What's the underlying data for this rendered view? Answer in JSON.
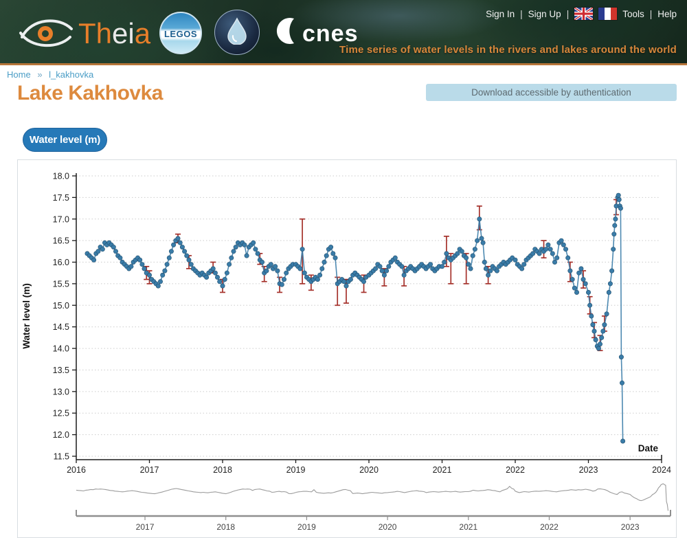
{
  "header": {
    "brand": {
      "theia_part1": "Th",
      "theia_part2": "ei",
      "theia_part3": "a",
      "legos_label": "LEGOS",
      "cnes_label": "cnes"
    },
    "nav": {
      "sign_in": "Sign In",
      "sign_up": "Sign Up",
      "tools": "Tools",
      "help": "Help"
    },
    "tagline": "Time series of water levels in the rivers and lakes around the world"
  },
  "breadcrumb": {
    "home": "Home",
    "separator": "»",
    "current": "l_kakhovka"
  },
  "page": {
    "title": "Lake Kakhovka",
    "download_notice": "Download accessible by authentication",
    "series_button": "Water level (m)"
  },
  "colors": {
    "accent_orange": "#dd8a3e",
    "link_teal": "#4a9dc6",
    "button_blue": "#2679b8",
    "banner_blue": "#badbe9",
    "header_border": "#b8763a"
  },
  "chart_data": {
    "type": "scatter",
    "title": "",
    "xlabel": "Date",
    "ylabel": "Water level (m)",
    "xlim": [
      2016,
      2024
    ],
    "ylim": [
      11.5,
      18.0
    ],
    "grid": "horizontal-dotted",
    "xticks": [
      2016,
      2017,
      2018,
      2019,
      2020,
      2021,
      2022,
      2023,
      2024
    ],
    "yticks": [
      11.5,
      12.0,
      12.5,
      13.0,
      13.5,
      14.0,
      14.5,
      15.0,
      15.5,
      16.0,
      16.5,
      17.0,
      17.5,
      18.0
    ],
    "point_color": "#3a7ca8",
    "point_edge_color": "#23506f",
    "line_color": "#3a7ca8",
    "errorbar_color": "#a5312b",
    "points": [
      [
        2016.15,
        16.2
      ],
      [
        2016.18,
        16.15
      ],
      [
        2016.21,
        16.1
      ],
      [
        2016.24,
        16.05
      ],
      [
        2016.27,
        16.2
      ],
      [
        2016.3,
        16.25
      ],
      [
        2016.33,
        16.35
      ],
      [
        2016.36,
        16.3
      ],
      [
        2016.39,
        16.45
      ],
      [
        2016.42,
        16.4
      ],
      [
        2016.45,
        16.45
      ],
      [
        2016.48,
        16.4
      ],
      [
        2016.51,
        16.35
      ],
      [
        2016.54,
        16.25
      ],
      [
        2016.57,
        16.15
      ],
      [
        2016.6,
        16.1
      ],
      [
        2016.63,
        16.0
      ],
      [
        2016.66,
        15.95
      ],
      [
        2016.69,
        15.9
      ],
      [
        2016.72,
        15.85
      ],
      [
        2016.75,
        15.9
      ],
      [
        2016.78,
        16.0
      ],
      [
        2016.81,
        16.05
      ],
      [
        2016.84,
        16.1
      ],
      [
        2016.87,
        16.05
      ],
      [
        2016.9,
        15.95
      ],
      [
        2016.93,
        15.85
      ],
      [
        2016.96,
        15.75
      ],
      [
        2017.0,
        15.7
      ],
      [
        2017.03,
        15.6
      ],
      [
        2017.06,
        15.55
      ],
      [
        2017.09,
        15.5
      ],
      [
        2017.12,
        15.45
      ],
      [
        2017.15,
        15.55
      ],
      [
        2017.18,
        15.7
      ],
      [
        2017.21,
        15.8
      ],
      [
        2017.24,
        15.95
      ],
      [
        2017.27,
        16.1
      ],
      [
        2017.3,
        16.25
      ],
      [
        2017.33,
        16.4
      ],
      [
        2017.36,
        16.5
      ],
      [
        2017.39,
        16.55
      ],
      [
        2017.42,
        16.45
      ],
      [
        2017.45,
        16.35
      ],
      [
        2017.48,
        16.25
      ],
      [
        2017.51,
        16.15
      ],
      [
        2017.54,
        16.05
      ],
      [
        2017.57,
        15.95
      ],
      [
        2017.6,
        15.85
      ],
      [
        2017.63,
        15.8
      ],
      [
        2017.66,
        15.75
      ],
      [
        2017.69,
        15.7
      ],
      [
        2017.72,
        15.75
      ],
      [
        2017.75,
        15.7
      ],
      [
        2017.78,
        15.65
      ],
      [
        2017.81,
        15.75
      ],
      [
        2017.84,
        15.8
      ],
      [
        2017.87,
        15.85
      ],
      [
        2017.9,
        15.75
      ],
      [
        2017.93,
        15.65
      ],
      [
        2017.96,
        15.55
      ],
      [
        2018.0,
        15.45
      ],
      [
        2018.03,
        15.6
      ],
      [
        2018.06,
        15.75
      ],
      [
        2018.09,
        15.95
      ],
      [
        2018.12,
        16.1
      ],
      [
        2018.15,
        16.25
      ],
      [
        2018.18,
        16.35
      ],
      [
        2018.21,
        16.45
      ],
      [
        2018.24,
        16.4
      ],
      [
        2018.27,
        16.45
      ],
      [
        2018.3,
        16.4
      ],
      [
        2018.33,
        16.15
      ],
      [
        2018.36,
        16.35
      ],
      [
        2018.39,
        16.4
      ],
      [
        2018.42,
        16.45
      ],
      [
        2018.45,
        16.3
      ],
      [
        2018.48,
        16.2
      ],
      [
        2018.51,
        16.05
      ],
      [
        2018.54,
        16.0
      ],
      [
        2018.57,
        15.75
      ],
      [
        2018.6,
        15.8
      ],
      [
        2018.63,
        15.9
      ],
      [
        2018.66,
        15.95
      ],
      [
        2018.69,
        15.85
      ],
      [
        2018.72,
        15.9
      ],
      [
        2018.75,
        15.8
      ],
      [
        2018.78,
        15.5
      ],
      [
        2018.81,
        15.48
      ],
      [
        2018.84,
        15.6
      ],
      [
        2018.87,
        15.75
      ],
      [
        2018.9,
        15.85
      ],
      [
        2018.93,
        15.9
      ],
      [
        2018.96,
        15.95
      ],
      [
        2019.0,
        15.95
      ],
      [
        2019.03,
        15.9
      ],
      [
        2019.06,
        15.85
      ],
      [
        2019.09,
        16.3
      ],
      [
        2019.12,
        15.75
      ],
      [
        2019.15,
        15.65
      ],
      [
        2019.18,
        15.6
      ],
      [
        2019.21,
        15.55
      ],
      [
        2019.24,
        15.6
      ],
      [
        2019.27,
        15.65
      ],
      [
        2019.3,
        15.6
      ],
      [
        2019.33,
        15.7
      ],
      [
        2019.36,
        15.85
      ],
      [
        2019.39,
        16.0
      ],
      [
        2019.42,
        16.15
      ],
      [
        2019.45,
        16.3
      ],
      [
        2019.48,
        16.35
      ],
      [
        2019.51,
        16.2
      ],
      [
        2019.54,
        16.1
      ],
      [
        2019.57,
        15.5
      ],
      [
        2019.6,
        15.55
      ],
      [
        2019.63,
        15.6
      ],
      [
        2019.66,
        15.55
      ],
      [
        2019.69,
        15.45
      ],
      [
        2019.72,
        15.55
      ],
      [
        2019.75,
        15.6
      ],
      [
        2019.78,
        15.7
      ],
      [
        2019.81,
        15.75
      ],
      [
        2019.84,
        15.7
      ],
      [
        2019.87,
        15.65
      ],
      [
        2019.9,
        15.6
      ],
      [
        2019.93,
        15.55
      ],
      [
        2019.96,
        15.65
      ],
      [
        2020.0,
        15.7
      ],
      [
        2020.03,
        15.75
      ],
      [
        2020.06,
        15.8
      ],
      [
        2020.09,
        15.85
      ],
      [
        2020.12,
        15.95
      ],
      [
        2020.15,
        15.9
      ],
      [
        2020.18,
        15.8
      ],
      [
        2020.21,
        15.7
      ],
      [
        2020.24,
        15.8
      ],
      [
        2020.27,
        15.9
      ],
      [
        2020.3,
        16.0
      ],
      [
        2020.33,
        16.05
      ],
      [
        2020.36,
        16.1
      ],
      [
        2020.39,
        16.0
      ],
      [
        2020.42,
        15.95
      ],
      [
        2020.45,
        15.9
      ],
      [
        2020.48,
        15.7
      ],
      [
        2020.51,
        15.8
      ],
      [
        2020.54,
        15.85
      ],
      [
        2020.57,
        15.9
      ],
      [
        2020.6,
        15.85
      ],
      [
        2020.63,
        15.8
      ],
      [
        2020.66,
        15.85
      ],
      [
        2020.69,
        15.9
      ],
      [
        2020.72,
        15.95
      ],
      [
        2020.75,
        15.9
      ],
      [
        2020.78,
        15.85
      ],
      [
        2020.81,
        15.9
      ],
      [
        2020.84,
        15.95
      ],
      [
        2020.87,
        15.85
      ],
      [
        2020.9,
        15.8
      ],
      [
        2020.93,
        15.85
      ],
      [
        2020.96,
        15.9
      ],
      [
        2021.0,
        15.9
      ],
      [
        2021.03,
        16.0
      ],
      [
        2021.06,
        16.2
      ],
      [
        2021.09,
        16.1
      ],
      [
        2021.12,
        16.05
      ],
      [
        2021.15,
        16.1
      ],
      [
        2021.18,
        16.15
      ],
      [
        2021.21,
        16.2
      ],
      [
        2021.24,
        16.3
      ],
      [
        2021.27,
        16.25
      ],
      [
        2021.3,
        16.15
      ],
      [
        2021.33,
        16.1
      ],
      [
        2021.36,
        15.95
      ],
      [
        2021.39,
        15.85
      ],
      [
        2021.42,
        16.15
      ],
      [
        2021.45,
        16.3
      ],
      [
        2021.48,
        16.5
      ],
      [
        2021.51,
        17.0
      ],
      [
        2021.54,
        16.55
      ],
      [
        2021.56,
        16.45
      ],
      [
        2021.58,
        16.0
      ],
      [
        2021.6,
        15.85
      ],
      [
        2021.63,
        15.7
      ],
      [
        2021.66,
        15.8
      ],
      [
        2021.69,
        15.9
      ],
      [
        2021.72,
        15.85
      ],
      [
        2021.75,
        15.8
      ],
      [
        2021.78,
        15.9
      ],
      [
        2021.81,
        15.95
      ],
      [
        2021.84,
        16.0
      ],
      [
        2021.87,
        15.95
      ],
      [
        2021.9,
        16.0
      ],
      [
        2021.93,
        16.05
      ],
      [
        2021.96,
        16.1
      ],
      [
        2022.0,
        16.05
      ],
      [
        2022.03,
        15.95
      ],
      [
        2022.06,
        15.9
      ],
      [
        2022.09,
        15.85
      ],
      [
        2022.12,
        15.95
      ],
      [
        2022.15,
        16.05
      ],
      [
        2022.18,
        16.1
      ],
      [
        2022.21,
        16.15
      ],
      [
        2022.24,
        16.2
      ],
      [
        2022.27,
        16.3
      ],
      [
        2022.3,
        16.25
      ],
      [
        2022.33,
        16.2
      ],
      [
        2022.36,
        16.3
      ],
      [
        2022.39,
        16.25
      ],
      [
        2022.42,
        16.3
      ],
      [
        2022.45,
        16.4
      ],
      [
        2022.48,
        16.3
      ],
      [
        2022.51,
        16.2
      ],
      [
        2022.54,
        16.0
      ],
      [
        2022.57,
        16.1
      ],
      [
        2022.6,
        16.45
      ],
      [
        2022.63,
        16.5
      ],
      [
        2022.66,
        16.4
      ],
      [
        2022.69,
        16.3
      ],
      [
        2022.72,
        16.1
      ],
      [
        2022.75,
        15.8
      ],
      [
        2022.78,
        15.6
      ],
      [
        2022.81,
        15.4
      ],
      [
        2022.84,
        15.3
      ],
      [
        2022.87,
        15.75
      ],
      [
        2022.9,
        15.85
      ],
      [
        2022.93,
        15.6
      ],
      [
        2022.96,
        15.5
      ],
      [
        2023.0,
        15.3
      ],
      [
        2023.02,
        15.0
      ],
      [
        2023.04,
        14.75
      ],
      [
        2023.06,
        14.55
      ],
      [
        2023.08,
        14.4
      ],
      [
        2023.1,
        14.2
      ],
      [
        2023.12,
        14.05
      ],
      [
        2023.14,
        14.0
      ],
      [
        2023.16,
        14.1
      ],
      [
        2023.18,
        14.25
      ],
      [
        2023.2,
        14.4
      ],
      [
        2023.22,
        14.55
      ],
      [
        2023.25,
        14.8
      ],
      [
        2023.28,
        15.3
      ],
      [
        2023.3,
        15.5
      ],
      [
        2023.32,
        15.8
      ],
      [
        2023.34,
        16.3
      ],
      [
        2023.35,
        16.65
      ],
      [
        2023.36,
        16.85
      ],
      [
        2023.37,
        17.0
      ],
      [
        2023.38,
        17.3
      ],
      [
        2023.4,
        17.5
      ],
      [
        2023.41,
        17.55
      ],
      [
        2023.42,
        17.45
      ],
      [
        2023.43,
        17.3
      ],
      [
        2023.44,
        17.25
      ],
      [
        2023.45,
        13.8
      ],
      [
        2023.46,
        13.2
      ],
      [
        2023.47,
        11.85
      ]
    ],
    "error_bars": [
      [
        2016.96,
        15.6,
        15.9
      ],
      [
        2017.0,
        15.5,
        15.8
      ],
      [
        2017.39,
        16.45,
        16.65
      ],
      [
        2017.54,
        15.85,
        16.15
      ],
      [
        2017.87,
        15.75,
        16.0
      ],
      [
        2018.0,
        15.3,
        15.6
      ],
      [
        2018.51,
        15.95,
        16.2
      ],
      [
        2018.57,
        15.55,
        15.9
      ],
      [
        2018.78,
        15.3,
        15.65
      ],
      [
        2019.09,
        15.5,
        17.0
      ],
      [
        2019.21,
        15.35,
        15.7
      ],
      [
        2019.57,
        15.0,
        15.65
      ],
      [
        2019.69,
        15.05,
        15.6
      ],
      [
        2019.93,
        15.3,
        15.7
      ],
      [
        2020.21,
        15.45,
        15.85
      ],
      [
        2020.48,
        15.45,
        15.9
      ],
      [
        2021.06,
        15.9,
        16.6
      ],
      [
        2021.12,
        15.5,
        16.2
      ],
      [
        2021.33,
        15.5,
        16.2
      ],
      [
        2021.51,
        16.75,
        17.3
      ],
      [
        2021.63,
        15.5,
        15.9
      ],
      [
        2022.39,
        16.1,
        16.5
      ],
      [
        2022.75,
        15.55,
        16.0
      ],
      [
        2022.93,
        15.4,
        15.8
      ],
      [
        2023.02,
        14.8,
        15.2
      ],
      [
        2023.08,
        14.25,
        14.6
      ],
      [
        2023.16,
        13.95,
        14.3
      ],
      [
        2023.22,
        14.4,
        14.75
      ],
      [
        2023.38,
        17.1,
        17.45
      ]
    ],
    "navigator": {
      "xlim": [
        2016.15,
        2023.5
      ],
      "xticks": [
        2017,
        2018,
        2019,
        2020,
        2021,
        2022,
        2023
      ],
      "line_color": "#9b9b9b",
      "axis_color": "#8f8f8f",
      "label_color": "#444444"
    }
  }
}
